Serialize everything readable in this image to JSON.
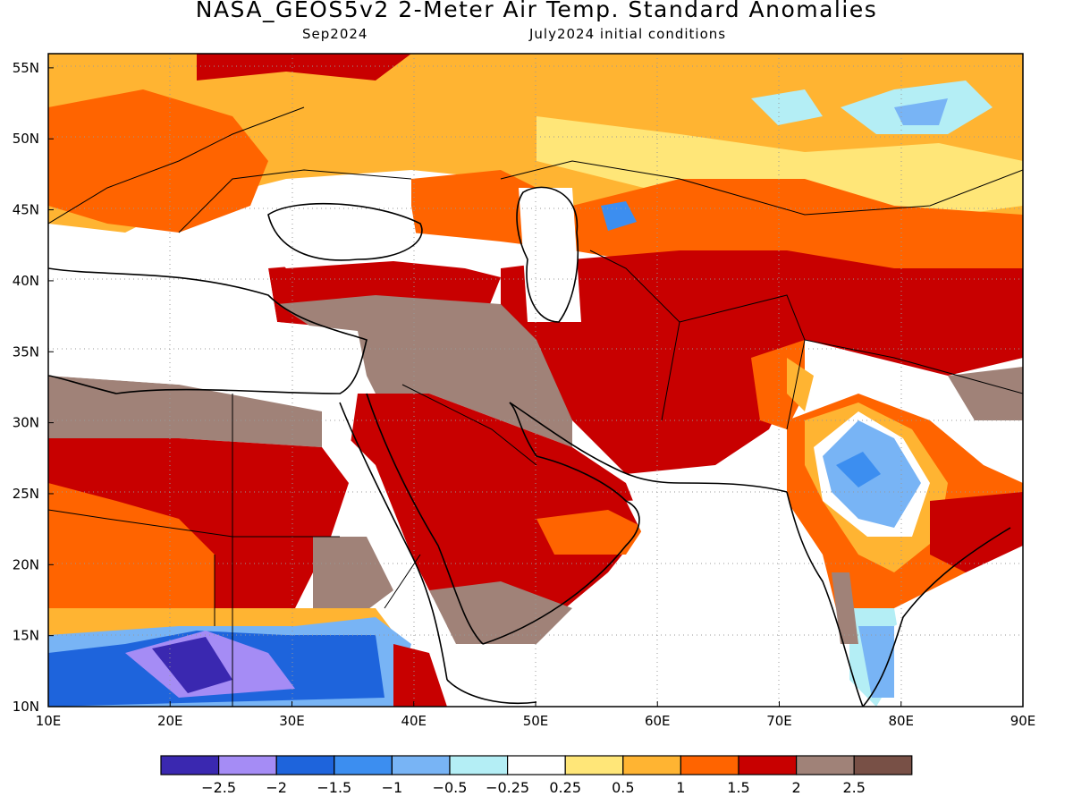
{
  "title": "NASA_GEOS5v2 2-Meter Air Temp. Standard Anomalies",
  "subtitle_left": "Sep2024",
  "subtitle_right": "July2024 initial conditions",
  "lat_labels": [
    "10N",
    "15N",
    "20N",
    "25N",
    "30N",
    "35N",
    "40N",
    "45N",
    "50N",
    "55N"
  ],
  "lon_labels": [
    "10E",
    "20E",
    "30E",
    "40E",
    "50E",
    "60E",
    "70E",
    "80E",
    "90E"
  ],
  "colorbar": {
    "colors": [
      "#3a28b0",
      "#a58cf5",
      "#1e64dc",
      "#3c8ef0",
      "#78b4f5",
      "#b4eef5",
      "#ffffff",
      "#ffe678",
      "#ffb432",
      "#ff6400",
      "#c80000",
      "#a08278",
      "#785046"
    ],
    "labels": [
      "−2.5",
      "−2",
      "−1.5",
      "−1",
      "−0.5",
      "−0.25",
      "0.25",
      "0.5",
      "1",
      "1.5",
      "2",
      "2.5"
    ]
  }
}
